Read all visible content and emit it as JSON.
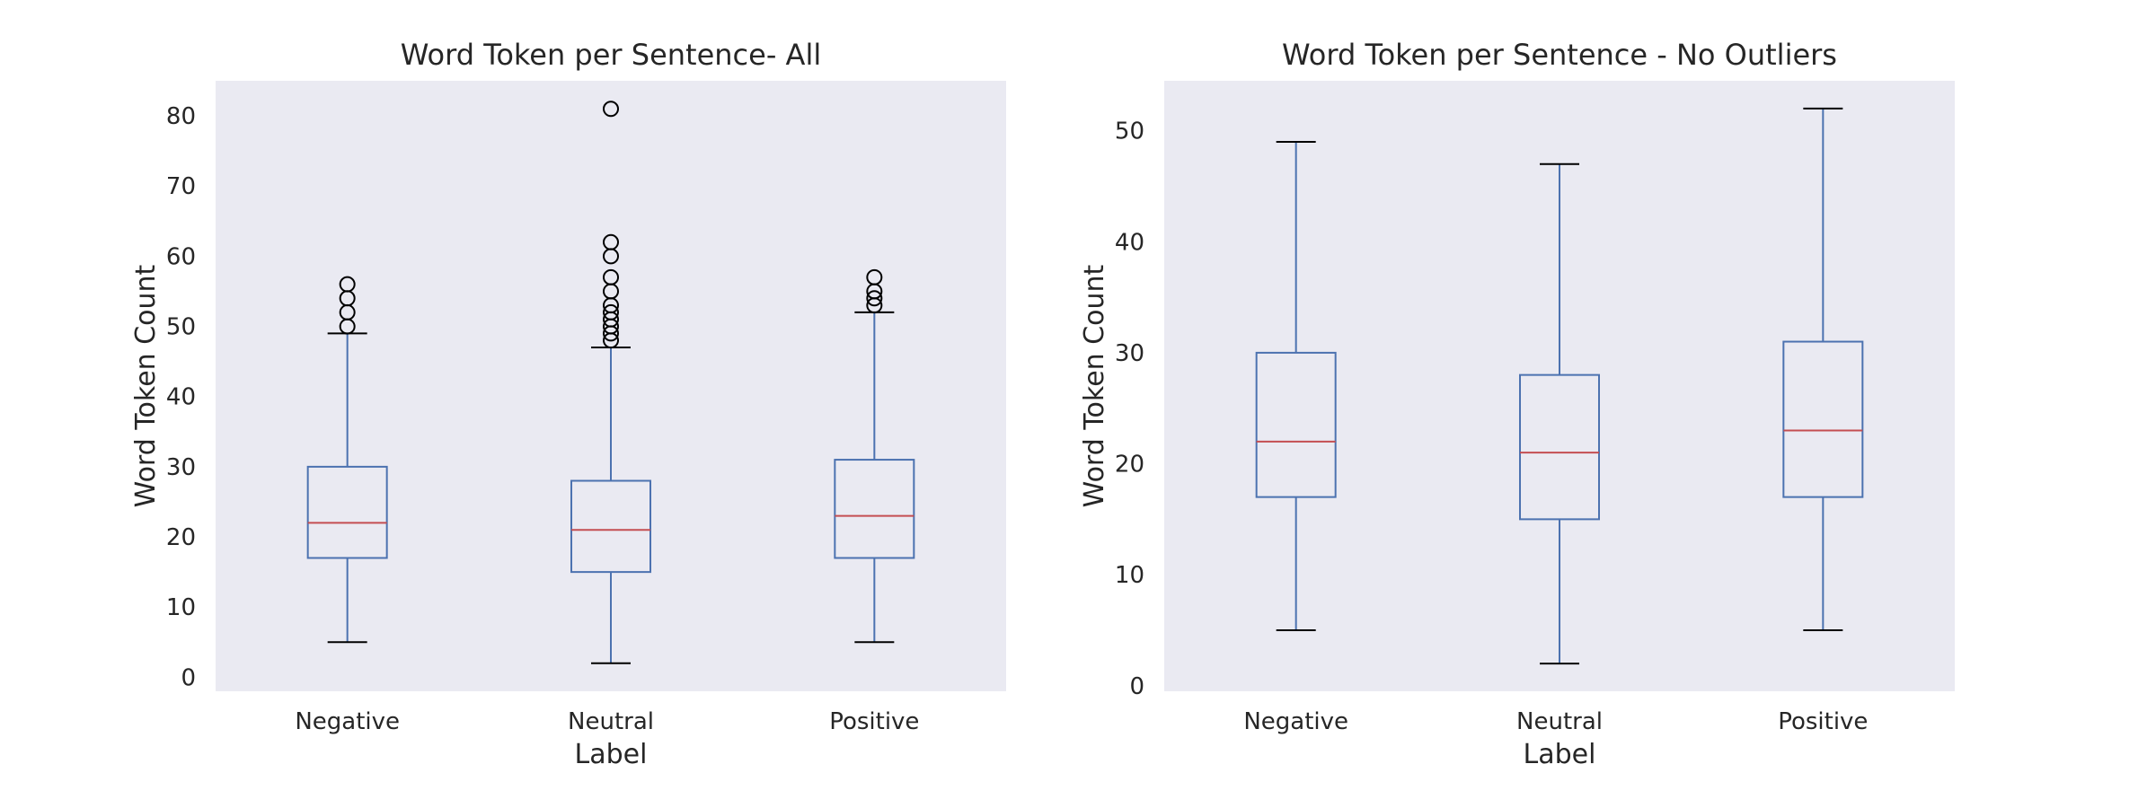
{
  "chart_data": [
    {
      "type": "box",
      "title": "Word Token per Sentence- All",
      "xlabel": "Label",
      "ylabel": "Word Token Count",
      "categories": [
        "Negative",
        "Neutral",
        "Positive"
      ],
      "ylim": [
        -2,
        85
      ],
      "yticks": [
        0,
        10,
        20,
        30,
        40,
        50,
        60,
        70,
        80
      ],
      "grid": false,
      "boxes": [
        {
          "category": "Negative",
          "whisker_low": 5,
          "q1": 17,
          "median": 22,
          "q3": 30,
          "whisker_high": 49,
          "outliers": [
            50,
            52,
            54,
            56
          ]
        },
        {
          "category": "Neutral",
          "whisker_low": 2,
          "q1": 15,
          "median": 21,
          "q3": 28,
          "whisker_high": 47,
          "outliers": [
            48,
            49,
            50,
            51,
            52,
            53,
            55,
            57,
            60,
            62,
            81
          ]
        },
        {
          "category": "Positive",
          "whisker_low": 5,
          "q1": 17,
          "median": 23,
          "q3": 31,
          "whisker_high": 52,
          "outliers": [
            53,
            54,
            55,
            57
          ]
        }
      ],
      "colors": {
        "box": "#4c72b0",
        "median": "#c44e52",
        "whisker_cap": "#000000",
        "background": "#eaeaf2"
      }
    },
    {
      "type": "box",
      "title": "Word Token per Sentence - No Outliers",
      "xlabel": "Label",
      "ylabel": "Word Token Count",
      "categories": [
        "Negative",
        "Neutral",
        "Positive"
      ],
      "ylim": [
        -0.5,
        54.5
      ],
      "yticks": [
        0,
        10,
        20,
        30,
        40,
        50
      ],
      "grid": false,
      "boxes": [
        {
          "category": "Negative",
          "whisker_low": 5,
          "q1": 17,
          "median": 22,
          "q3": 30,
          "whisker_high": 49,
          "outliers": []
        },
        {
          "category": "Neutral",
          "whisker_low": 2,
          "q1": 15,
          "median": 21,
          "q3": 28,
          "whisker_high": 47,
          "outliers": []
        },
        {
          "category": "Positive",
          "whisker_low": 5,
          "q1": 17,
          "median": 23,
          "q3": 31,
          "whisker_high": 52,
          "outliers": []
        }
      ],
      "colors": {
        "box": "#4c72b0",
        "median": "#c44e52",
        "whisker_cap": "#000000",
        "background": "#eaeaf2"
      }
    }
  ]
}
